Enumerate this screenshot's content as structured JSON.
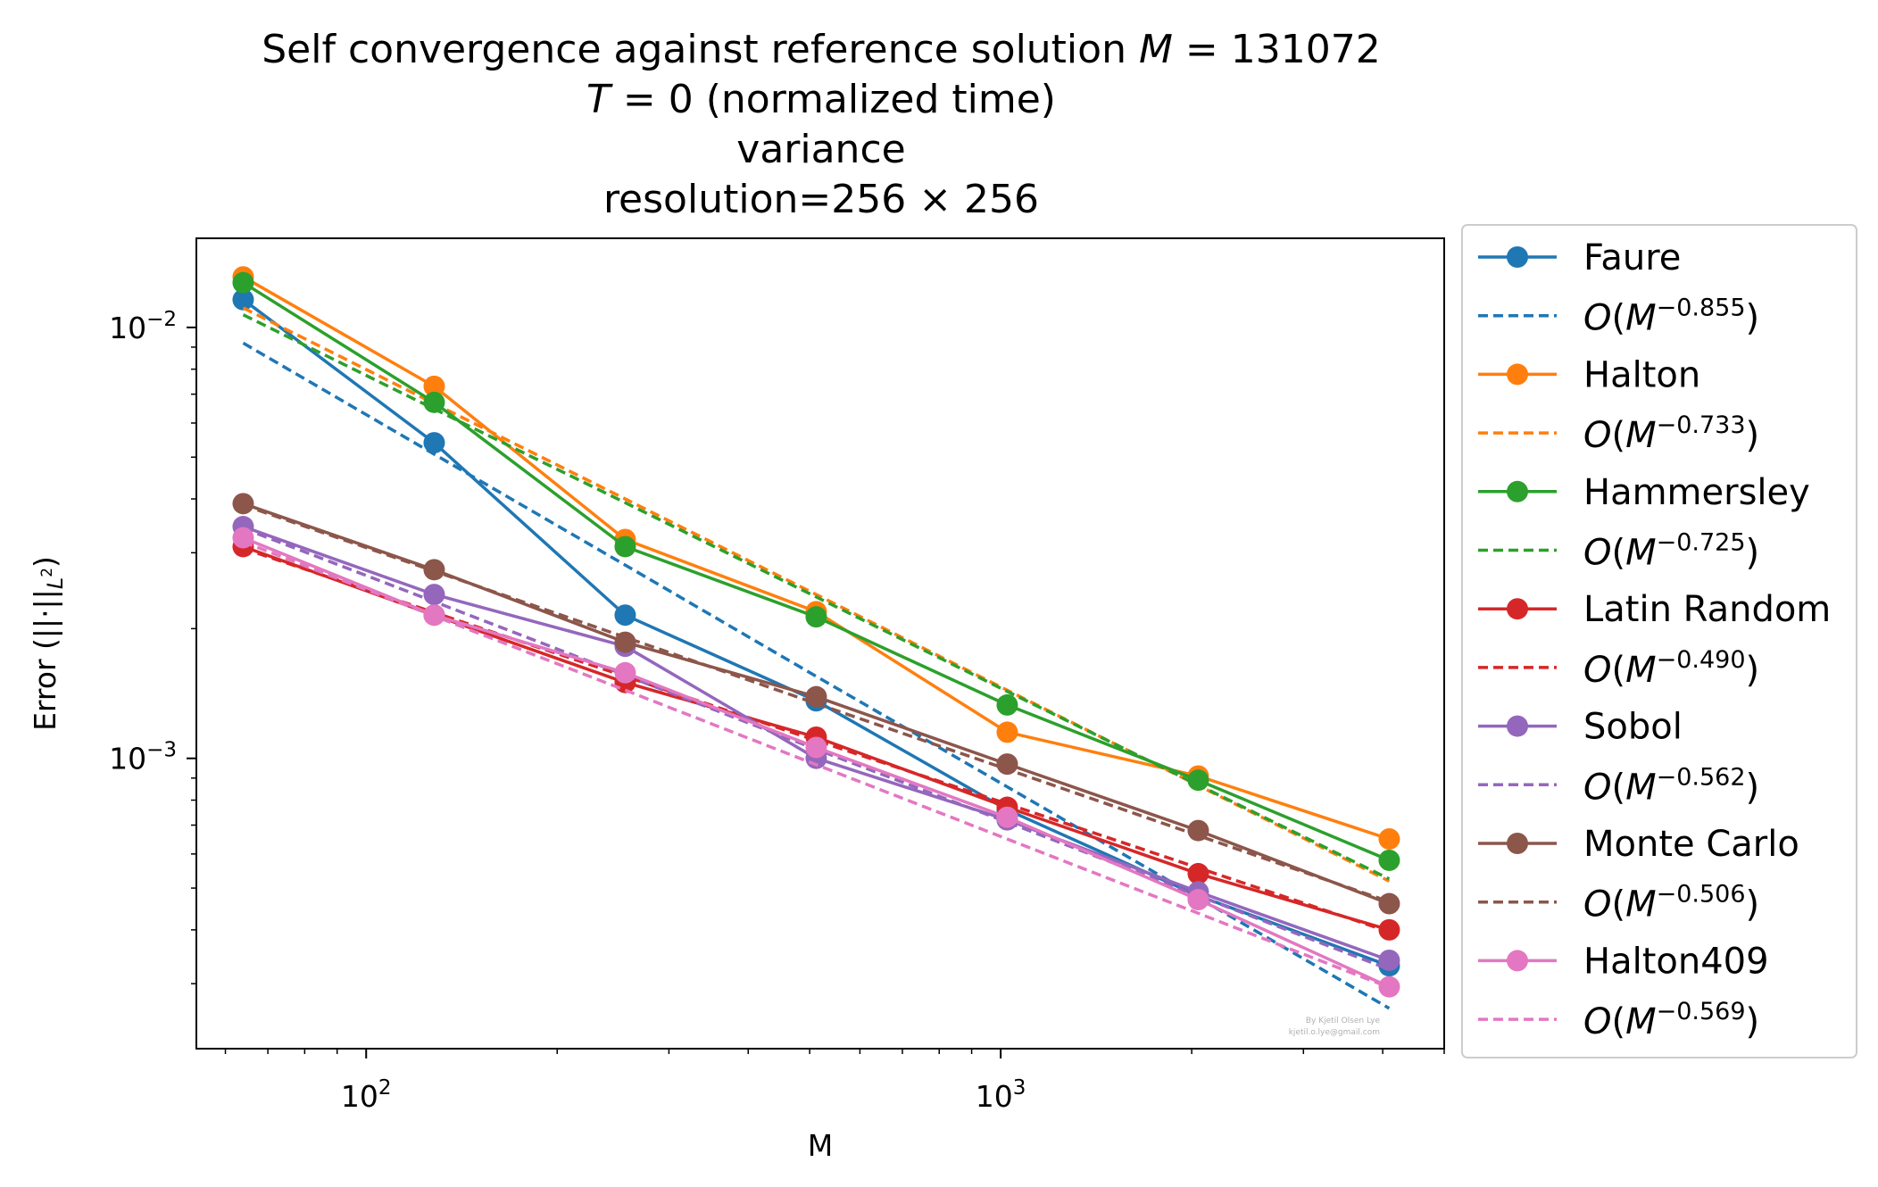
{
  "chart_data": {
    "type": "line",
    "title_lines": [
      "Self convergence against reference solution M = 131072",
      "T = 0 (normalized time)",
      "variance",
      "resolution=256 × 256"
    ],
    "xlabel": "M",
    "ylabel": "Error (||·||L²)",
    "xscale": "log",
    "yscale": "log",
    "xlim": [
      54,
      5000
    ],
    "ylim": [
      0.000212,
      0.0161
    ],
    "xticks": [
      {
        "value": 100,
        "base": "10",
        "exp": "2"
      },
      {
        "value": 1000,
        "base": "10",
        "exp": "3"
      }
    ],
    "yticks": [
      {
        "value": 0.01,
        "base": "10",
        "exp": "−2"
      },
      {
        "value": 0.001,
        "base": "10",
        "exp": "−3"
      }
    ],
    "grid": false,
    "legend_position": "outside-right",
    "watermark": [
      "By Kjetil Olsen Lye",
      "kjetil.o.lye@gmail.com"
    ],
    "x": [
      64,
      128,
      256,
      512,
      1024,
      2048,
      4096
    ],
    "series": [
      {
        "name": "Faure",
        "color": "#1f77b4",
        "values": [
          0.0116,
          0.0054,
          0.00215,
          0.00136,
          0.00076,
          0.00048,
          0.00033
        ]
      },
      {
        "name": "O(M^−0.855)",
        "color": "#1f77b4",
        "dashed": true,
        "fit_of": "Faure",
        "values": [
          0.0092,
          0.00508,
          0.00281,
          0.00155,
          0.000859,
          0.000475,
          0.000263
        ]
      },
      {
        "name": "Halton",
        "color": "#ff7f0e",
        "values": [
          0.0131,
          0.0073,
          0.00322,
          0.00219,
          0.00115,
          0.00091,
          0.00065
        ]
      },
      {
        "name": "O(M^−0.733)",
        "color": "#ff7f0e",
        "dashed": true,
        "fit_of": "Halton",
        "values": [
          0.0111,
          0.00666,
          0.004,
          0.0024,
          0.00144,
          0.000865,
          0.000519
        ]
      },
      {
        "name": "Hammersley",
        "color": "#2ca02c",
        "values": [
          0.0127,
          0.0067,
          0.0031,
          0.00213,
          0.00133,
          0.00089,
          0.00058
        ]
      },
      {
        "name": "O(M^−0.725)",
        "color": "#2ca02c",
        "dashed": true,
        "fit_of": "Hammersley",
        "values": [
          0.0107,
          0.00647,
          0.00392,
          0.00237,
          0.00143,
          0.000868,
          0.000525
        ]
      },
      {
        "name": "Latin Random",
        "color": "#d62728",
        "values": [
          0.0031,
          0.00215,
          0.0015,
          0.00112,
          0.00077,
          0.00054,
          0.0004
        ]
      },
      {
        "name": "O(M^−0.490)",
        "color": "#d62728",
        "dashed": true,
        "fit_of": "Latin Random",
        "values": [
          0.00307,
          0.00218,
          0.00155,
          0.0011,
          0.000784,
          0.000557,
          0.000396
        ]
      },
      {
        "name": "Sobol",
        "color": "#9467bd",
        "values": [
          0.00345,
          0.0024,
          0.00182,
          0.001,
          0.00072,
          0.00049,
          0.00034
        ]
      },
      {
        "name": "O(M^−0.562)",
        "color": "#9467bd",
        "dashed": true,
        "fit_of": "Sobol",
        "values": [
          0.00342,
          0.00231,
          0.00156,
          0.00105,
          0.000711,
          0.00048,
          0.000324
        ]
      },
      {
        "name": "Monte Carlo",
        "color": "#8c564b",
        "values": [
          0.0039,
          0.00274,
          0.00186,
          0.00139,
          0.00097,
          0.00068,
          0.00046
        ]
      },
      {
        "name": "O(M^−0.506)",
        "color": "#8c564b",
        "dashed": true,
        "fit_of": "Monte Carlo",
        "values": [
          0.00387,
          0.00272,
          0.00191,
          0.00134,
          0.000943,
          0.000662,
          0.000465
        ]
      },
      {
        "name": "Halton409",
        "color": "#e377c2",
        "values": [
          0.00325,
          0.00215,
          0.00158,
          0.00106,
          0.00073,
          0.00047,
          0.000295
        ]
      },
      {
        "name": "O(M^−0.569)",
        "color": "#e377c2",
        "dashed": true,
        "fit_of": "Halton409",
        "values": [
          0.00318,
          0.00214,
          0.00144,
          0.000967,
          0.00065,
          0.000437,
          0.000294
        ]
      }
    ]
  },
  "legend_items": [
    {
      "label": "Faure",
      "color": "#1f77b4",
      "marker": true
    },
    {
      "label": "−0.855",
      "color": "#1f77b4",
      "marker": false
    },
    {
      "label": "Halton",
      "color": "#ff7f0e",
      "marker": true
    },
    {
      "label": "−0.733",
      "color": "#ff7f0e",
      "marker": false
    },
    {
      "label": "Hammersley",
      "color": "#2ca02c",
      "marker": true
    },
    {
      "label": "−0.725",
      "color": "#2ca02c",
      "marker": false
    },
    {
      "label": "Latin Random",
      "color": "#d62728",
      "marker": true
    },
    {
      "label": "−0.490",
      "color": "#d62728",
      "marker": false
    },
    {
      "label": "Sobol",
      "color": "#9467bd",
      "marker": true
    },
    {
      "label": "−0.562",
      "color": "#9467bd",
      "marker": false
    },
    {
      "label": "Monte Carlo",
      "color": "#8c564b",
      "marker": true
    },
    {
      "label": "−0.506",
      "color": "#8c564b",
      "marker": false
    },
    {
      "label": "Halton409",
      "color": "#e377c2",
      "marker": true
    },
    {
      "label": "−0.569",
      "color": "#e377c2",
      "marker": false
    }
  ]
}
